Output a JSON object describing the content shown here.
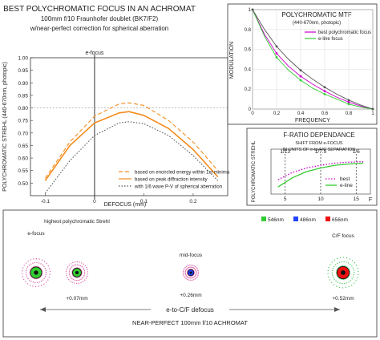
{
  "header": {
    "title": "BEST POLYCHROMATIC FOCUS IN AN ACHROMAT",
    "subtitle1": "100mm f/10 Fraunhofer doublet (BK7/F2)",
    "subtitle2": "w/near-perfect correction for spherical aberration"
  },
  "colors": {
    "orange": "#f28c1e",
    "gray": "#555555",
    "magenta": "#cc00cc",
    "green": "#33cc33",
    "blue": "#2244ff",
    "red": "#ee1111"
  },
  "chart_data": [
    {
      "type": "line",
      "title": "",
      "xlabel": "DEFOCUS (mm)",
      "ylabel": "POLYCHROMATIC STREHL (440-670nm, photopic)",
      "xlim": [
        -0.13,
        0.27
      ],
      "ylim": [
        0.45,
        1.0
      ],
      "x_ticks": [
        "-0.1",
        "0",
        "0.1",
        "0.2"
      ],
      "y_ticks": [
        "1.00",
        "0.95",
        "0.90",
        "0.85",
        "0.80",
        "0.75",
        "0.70",
        "0.65",
        "0.60",
        "0.55",
        "0.50"
      ],
      "x": [
        -0.1,
        -0.05,
        0.0,
        0.05,
        0.07,
        0.1,
        0.15,
        0.2,
        0.25
      ],
      "series": [
        {
          "name": "based on encircled energy within 1st minima",
          "style": "dashed",
          "color": "#f28c1e",
          "values": [
            0.52,
            0.664,
            0.767,
            0.816,
            0.82,
            0.81,
            0.75,
            0.664,
            0.55
          ]
        },
        {
          "name": "based on peak diffraction intensity",
          "style": "solid",
          "color": "#f28c1e",
          "values": [
            0.51,
            0.65,
            0.74,
            0.78,
            0.785,
            0.77,
            0.718,
            0.634,
            0.525
          ]
        },
        {
          "name": "with 1/6 wave P-V of spherical aberration",
          "style": "dotted",
          "color": "#555555",
          "values": [
            0.46,
            0.59,
            0.69,
            0.74,
            0.745,
            0.737,
            0.69,
            0.61,
            0.51
          ]
        }
      ],
      "annotations": [
        "e-focus"
      ],
      "reference_line": 0.8,
      "legend_position": "bottom-right"
    },
    {
      "type": "line",
      "title": "POLYCHROMATIC MTF",
      "subtitle": "(440-670nm, photopic)",
      "xlabel": "FREQUENCY",
      "ylabel": "MODULATION",
      "xlim": [
        0,
        1
      ],
      "ylim": [
        0,
        1
      ],
      "x_ticks": [
        "0",
        "0.2",
        "0.4",
        "0.6",
        "0.8",
        "1"
      ],
      "y_ticks": [
        "0",
        "0.2",
        "0.4",
        "0.6",
        "0.8",
        "1"
      ],
      "x": [
        0,
        0.1,
        0.2,
        0.3,
        0.4,
        0.5,
        0.6,
        0.7,
        0.8,
        0.9,
        1.0
      ],
      "series": [
        {
          "name": "best polychromatic focus",
          "color": "#cc00cc",
          "values": [
            1.0,
            0.75,
            0.56,
            0.43,
            0.33,
            0.25,
            0.18,
            0.12,
            0.07,
            0.03,
            0.0
          ]
        },
        {
          "name": "e-line focus",
          "color": "#33cc33",
          "values": [
            1.0,
            0.73,
            0.52,
            0.39,
            0.29,
            0.21,
            0.15,
            0.1,
            0.05,
            0.02,
            0.0
          ]
        },
        {
          "name": "",
          "color": "#555555",
          "values": [
            1.0,
            0.8,
            0.63,
            0.5,
            0.39,
            0.3,
            0.22,
            0.15,
            0.09,
            0.04,
            0.0
          ]
        }
      ],
      "legend_position": "top-right"
    },
    {
      "type": "line",
      "title": "F-RATIO DEPENDANCE",
      "subtitle1": "SHIFT FROM e-FOCUS",
      "subtitle2": "IN UNITS OF e-to-F/C SEPARATION",
      "xlabel": "F",
      "ylabel": "POLYCHROMATIC STREHL",
      "x_ticks": [
        "5",
        "10",
        "15"
      ],
      "xlim": [
        3,
        17
      ],
      "ylim": [
        0.5,
        1.0
      ],
      "x": [
        4,
        5,
        6,
        8,
        10,
        12,
        14,
        16
      ],
      "markers": [
        "1/13",
        "1/7.5",
        "1/6"
      ],
      "series": [
        {
          "name": "best",
          "color": "#cc00cc",
          "style": "dotted",
          "values": [
            0.66,
            0.7,
            0.74,
            0.79,
            0.82,
            0.845,
            0.855,
            0.86
          ]
        },
        {
          "name": "e-line",
          "color": "#33cc33",
          "style": "solid",
          "values": [
            0.58,
            0.63,
            0.68,
            0.75,
            0.79,
            0.82,
            0.835,
            0.845
          ]
        }
      ],
      "legend_position": "bottom-right"
    }
  ],
  "spots": {
    "legend": [
      "546nm",
      "486nm",
      "656nm"
    ],
    "items": [
      {
        "label": "e-focus",
        "sublabel": ""
      },
      {
        "label": "highest polychromatic Strehl",
        "sublabel": "+0.07mm"
      },
      {
        "label": "mid-focus",
        "sublabel": "+0.26mm"
      },
      {
        "label": "C/F focus",
        "sublabel": "+0.52mm"
      }
    ],
    "axis_label": "e-to-C/F defocus",
    "footer": "NEAR-PERFECT 100mm f/10  ACHROMAT"
  }
}
